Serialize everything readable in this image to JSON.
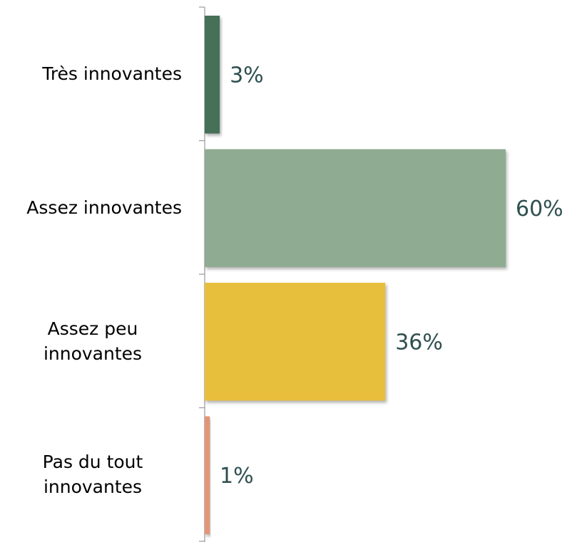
{
  "chart_data": {
    "type": "barh",
    "categories": [
      "Très innovantes",
      "Assez innovantes",
      "Assez peu innovantes",
      "Pas du tout innovantes"
    ],
    "values": [
      3,
      60,
      36,
      1
    ],
    "value_labels": [
      "3%",
      "60%",
      "36%",
      "1%"
    ],
    "colors": [
      "#466f58",
      "#8fab92",
      "#e8be3e",
      "#e49477"
    ],
    "xlim": [
      0,
      60
    ]
  }
}
